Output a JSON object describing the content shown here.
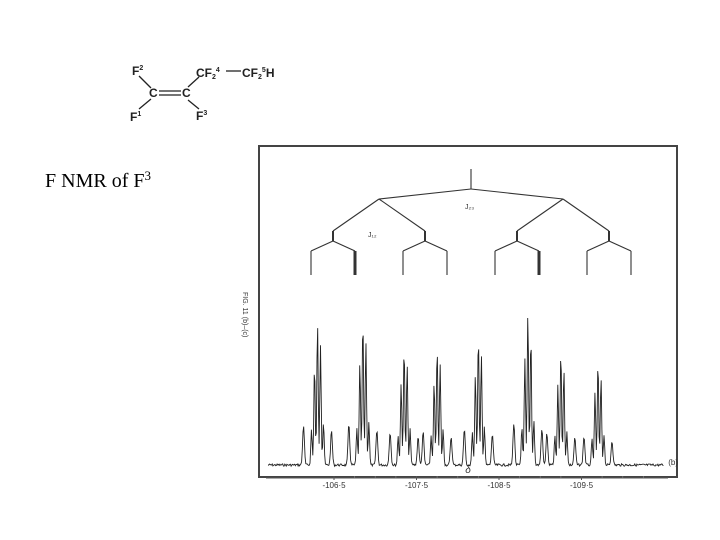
{
  "slide": {
    "caption_main": "F NMR of F",
    "caption_sup": "3"
  },
  "molecule": {
    "f2": {
      "base": "F",
      "sup": "2"
    },
    "f1": {
      "base": "F",
      "sup": "1"
    },
    "f3": {
      "base": "F",
      "sup": "3"
    },
    "c_left": "C",
    "c_right": "C",
    "cf4": {
      "base": "CF",
      "sub": "2",
      "sup": "4"
    },
    "cf5": {
      "base": "CF",
      "sub": "2",
      "sup": "5",
      "tail": "H"
    }
  },
  "figure": {
    "splitting_labels": {
      "j23": "J₂₃",
      "j12": "J₁₂"
    },
    "side_caption": "FIG. 11 (b)–(c)",
    "panel_label": "(b)",
    "x_axis_label": "δ",
    "x_ticks": [
      "-106·5",
      "-107·5",
      "-108·5",
      "-109·5"
    ],
    "colors": {
      "trace": "#222222",
      "frame": "#444444"
    }
  },
  "chart_data": {
    "type": "line",
    "title": "",
    "xlabel": "δ",
    "ylabel": "",
    "xlim": [
      -105.7,
      -110.5
    ],
    "x_ticks": [
      -106.5,
      -107.5,
      -108.5,
      -109.5
    ],
    "tree": {
      "levels": [
        {
          "label": "J₂₃",
          "count": 1
        },
        {
          "label": "",
          "count": 2
        },
        {
          "label": "J₁₂",
          "count": 4
        },
        {
          "label": "",
          "count": 8
        }
      ]
    },
    "peaks": [
      {
        "x": -106.3,
        "height": 0.9
      },
      {
        "x": -106.85,
        "height": 0.92
      },
      {
        "x": -107.35,
        "height": 0.75
      },
      {
        "x": -107.75,
        "height": 0.75
      },
      {
        "x": -108.25,
        "height": 0.82
      },
      {
        "x": -108.85,
        "height": 0.96
      },
      {
        "x": -109.25,
        "height": 0.72
      },
      {
        "x": -109.7,
        "height": 0.65
      }
    ]
  }
}
